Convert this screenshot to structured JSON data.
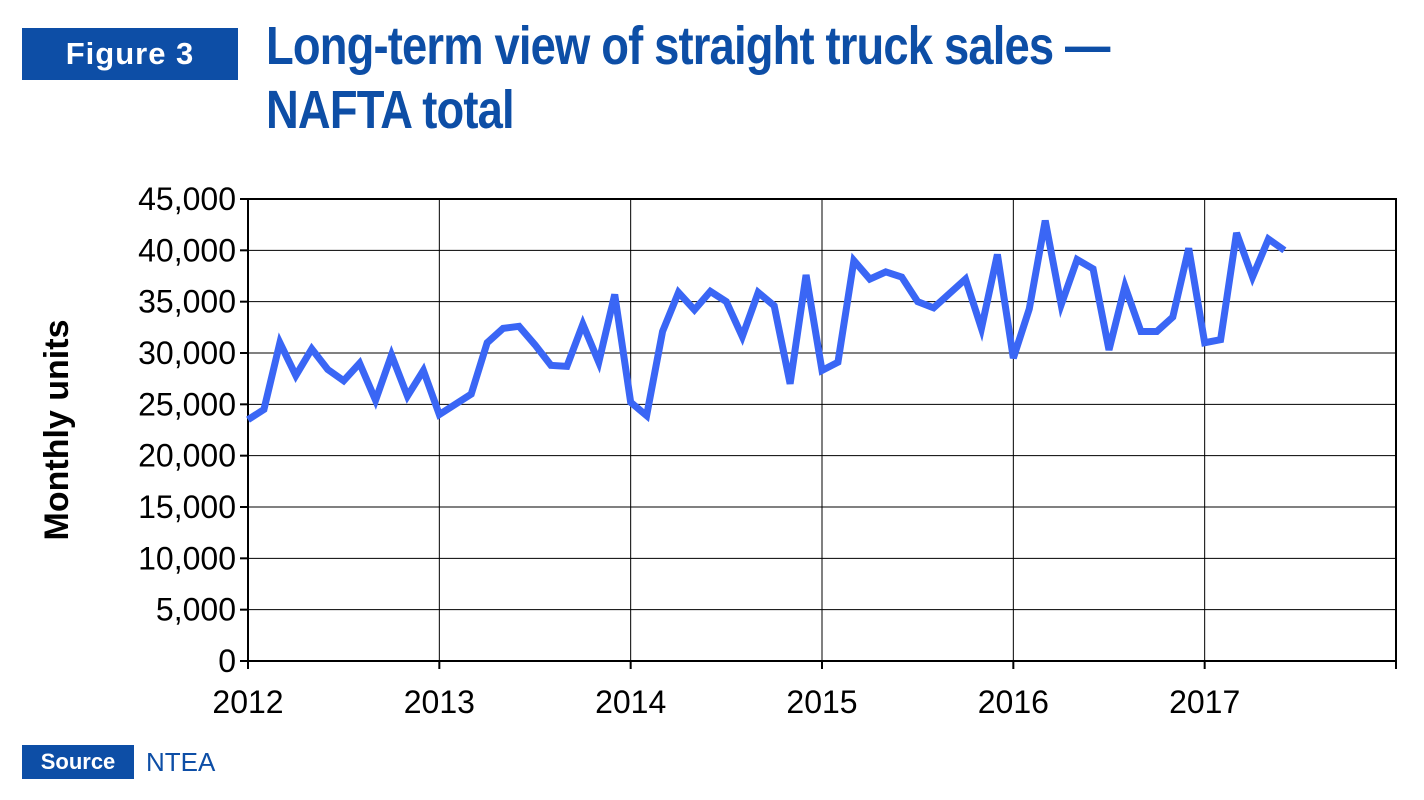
{
  "figure_label": "Figure 3",
  "title_line1": "Long-term view of straight truck sales —",
  "title_line2": "NAFTA total",
  "source_label": "Source",
  "source_text": "NTEA",
  "colors": {
    "accent": "#0d4ea6",
    "line": "#3a66f5"
  },
  "chart_data": {
    "type": "line",
    "ylabel": "Monthly units",
    "xlabel": "",
    "ylim": [
      0,
      45000
    ],
    "y_ticks": [
      0,
      5000,
      10000,
      15000,
      20000,
      25000,
      30000,
      35000,
      40000,
      45000
    ],
    "y_tick_labels": [
      "0",
      "5,000",
      "10,000",
      "15,000",
      "20,000",
      "25,000",
      "30,000",
      "35,000",
      "40,000",
      "45,000"
    ],
    "x_tick_labels": [
      "2012",
      "2013",
      "2014",
      "2015",
      "2016",
      "2017"
    ],
    "grid": true,
    "x_start": "2012-01",
    "series": [
      {
        "values": [
          23500,
          24500,
          31000,
          27800,
          30400,
          28400,
          27300,
          29000,
          25400,
          29800,
          25800,
          28300,
          24000,
          25000,
          26000,
          31000,
          32400,
          32600,
          30800,
          28800,
          28700,
          32800,
          29100,
          35700,
          25200,
          23900,
          32100,
          35900,
          34200,
          36000,
          35000,
          31600,
          35900,
          34600,
          27000,
          37600,
          28300,
          29100,
          39000,
          37200,
          37900,
          37400,
          35000,
          34400,
          35800,
          37200,
          32400,
          39600,
          29500,
          34300,
          42900,
          34700,
          39100,
          38200,
          30300,
          36500,
          32100,
          32100,
          33500,
          40200,
          31000,
          31300,
          41700,
          37400,
          41100,
          40000
        ]
      }
    ]
  }
}
